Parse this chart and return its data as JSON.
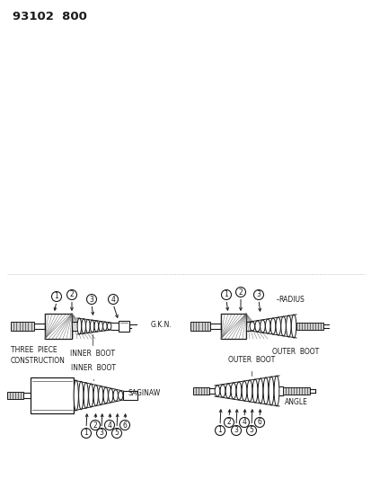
{
  "title": "93102  800",
  "bg_color": "#ffffff",
  "line_color": "#1a1a1a",
  "fig_width": 4.14,
  "fig_height": 5.33,
  "dpi": 100,
  "labels": {
    "three_piece": "THREE  PIECE\nCONSTRUCTION",
    "gkn_inner_boot": "INNER  BOOT",
    "gkn_label": "G.K.N.",
    "radius_label": "RADIUS",
    "outer_boot_top": "OUTER  BOOT",
    "inner_boot_bottom": "INNER  BOOT",
    "saginaw_label": "SAGINAW",
    "outer_boot_bottom": "OUTER  BOOT",
    "angle_label": "ANGLE"
  }
}
